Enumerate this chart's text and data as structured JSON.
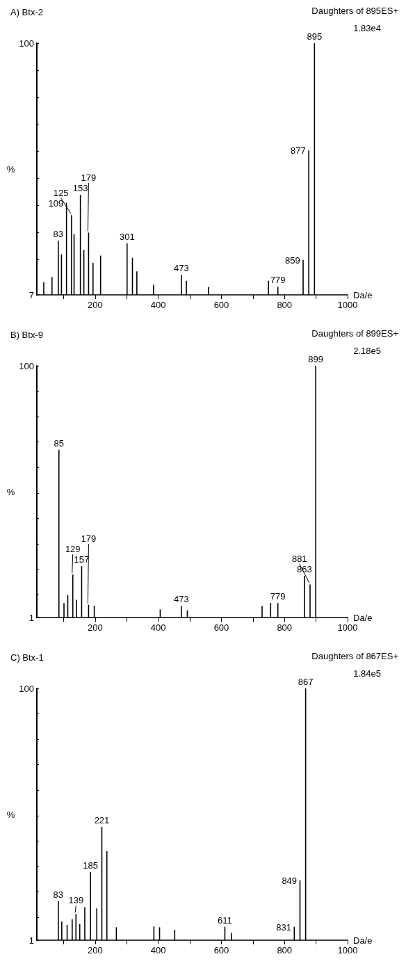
{
  "chart_data": [
    {
      "type": "bar",
      "title": "A) Btx-2",
      "subtitle": "Daughters of 895ES+",
      "xlabel": "Da/e",
      "ylabel": "%",
      "x": [
        37,
        63,
        83,
        93,
        109,
        125,
        133,
        153,
        164,
        179,
        193,
        217,
        301,
        318,
        332,
        385,
        473,
        489,
        559,
        749,
        779,
        859,
        877,
        895
      ],
      "values": [
        11.7,
        13.6,
        27,
        22,
        41,
        36.5,
        29.4,
        44,
        23.6,
        30,
        18.8,
        21.5,
        26,
        20.7,
        15.7,
        10.7,
        14.4,
        12.2,
        9.9,
        12.2,
        10,
        19.9,
        60.4,
        100
      ],
      "color": "#000000",
      "xlim": [
        15,
        1000
      ],
      "ylim": [
        7,
        100
      ],
      "xticks": [
        {
          "value": 100,
          "label": null
        },
        200,
        {
          "value": 300,
          "label": null
        },
        400,
        {
          "value": 500,
          "label": null
        },
        600,
        {
          "value": 700,
          "label": null
        },
        800,
        {
          "value": 900,
          "label": null
        },
        1000
      ],
      "yticks": [
        7,
        {
          "value": 20,
          "label": null
        },
        {
          "value": 30,
          "label": null
        },
        {
          "value": 40,
          "label": null
        },
        {
          "value": 50,
          "label": null
        },
        {
          "value": 60,
          "label": null
        },
        {
          "value": 70,
          "label": null
        },
        {
          "value": 80,
          "label": null
        },
        {
          "value": 90,
          "label": null
        },
        100
      ],
      "grid": false,
      "annotations": [
        {
          "text": "83",
          "x": 83,
          "y": 27
        },
        {
          "text": "109",
          "x": 109,
          "y": 41
        },
        {
          "text": "153",
          "x": 153,
          "y": 44
        },
        {
          "text": "125",
          "x": 125,
          "y": 36.5
        },
        {
          "text": "179",
          "x": 179,
          "y": 30
        },
        {
          "text": "301",
          "x": 301,
          "y": 26
        },
        {
          "text": "473",
          "x": 473,
          "y": 14.4
        },
        {
          "text": "779",
          "x": 779,
          "y": 10
        },
        {
          "text": "859",
          "x": 859,
          "y": 19.9
        },
        {
          "text": "877",
          "x": 877,
          "y": 60.4
        },
        {
          "text": "895",
          "x": 895,
          "y": 100
        },
        "1.83e4"
      ]
    },
    {
      "type": "bar",
      "title": "B) Btx-9",
      "subtitle": "Daughters of 899ES+",
      "xlabel": "Da/e",
      "ylabel": "%",
      "x": [
        85,
        101,
        113,
        129,
        141,
        157,
        179,
        197,
        406,
        473,
        492,
        729,
        756,
        779,
        863,
        881,
        899
      ],
      "values": [
        67,
        6.7,
        9.9,
        17.9,
        8,
        21.2,
        6,
        5.6,
        4.2,
        5.6,
        3.8,
        5.6,
        6.7,
        6.7,
        17.4,
        14,
        100
      ],
      "color": "#000000",
      "xlim": [
        15,
        1000
      ],
      "ylim": [
        1,
        100
      ],
      "xticks": [
        {
          "value": 100,
          "label": null
        },
        200,
        {
          "value": 300,
          "label": null
        },
        400,
        {
          "value": 500,
          "label": null
        },
        600,
        {
          "value": 700,
          "label": null
        },
        800,
        {
          "value": 900,
          "label": null
        },
        1000
      ],
      "yticks": [
        1,
        {
          "value": 10,
          "label": null
        },
        {
          "value": 20,
          "label": null
        },
        {
          "value": 30,
          "label": null
        },
        {
          "value": 40,
          "label": null
        },
        {
          "value": 50,
          "label": null
        },
        {
          "value": 60,
          "label": null
        },
        {
          "value": 70,
          "label": null
        },
        {
          "value": 80,
          "label": null
        },
        {
          "value": 90,
          "label": null
        },
        100
      ],
      "grid": false,
      "annotations": [
        {
          "text": "85",
          "x": 85,
          "y": 67
        },
        {
          "text": "129",
          "x": 129,
          "y": 17.9
        },
        {
          "text": "157",
          "x": 157,
          "y": 21.2
        },
        {
          "text": "179",
          "x": 179,
          "y": 6
        },
        {
          "text": "473",
          "x": 473,
          "y": 5.6
        },
        {
          "text": "779",
          "x": 779,
          "y": 6.7
        },
        {
          "text": "863",
          "x": 863,
          "y": 17.4
        },
        {
          "text": "881",
          "x": 881,
          "y": 14
        },
        {
          "text": "899",
          "x": 899,
          "y": 100
        },
        "2.18e5"
      ]
    },
    {
      "type": "bar",
      "title": "C) Btx-1",
      "subtitle": "Daughters of 867ES+",
      "xlabel": "Da/e",
      "ylabel": "%",
      "x": [
        83,
        94,
        111,
        127,
        139,
        151,
        167,
        185,
        205,
        221,
        237,
        267,
        386,
        404,
        452,
        611,
        632,
        831,
        849,
        867
      ],
      "values": [
        16.3,
        8.3,
        7,
        9.2,
        11.3,
        7.3,
        14,
        27.8,
        13.5,
        45.6,
        36,
        6.1,
        6.4,
        6.1,
        5.1,
        6.3,
        3.9,
        6.3,
        24.5,
        100
      ],
      "color": "#000000",
      "xlim": [
        15,
        1000
      ],
      "ylim": [
        1,
        100
      ],
      "xticks": [
        {
          "value": 100,
          "label": null
        },
        200,
        {
          "value": 300,
          "label": null
        },
        400,
        {
          "value": 500,
          "label": null
        },
        600,
        {
          "value": 700,
          "label": null
        },
        800,
        {
          "value": 900,
          "label": null
        },
        1000
      ],
      "yticks": [
        1,
        {
          "value": 10,
          "label": null
        },
        {
          "value": 20,
          "label": null
        },
        {
          "value": 30,
          "label": null
        },
        {
          "value": 40,
          "label": null
        },
        {
          "value": 50,
          "label": null
        },
        {
          "value": 60,
          "label": null
        },
        {
          "value": 70,
          "label": null
        },
        {
          "value": 80,
          "label": null
        },
        {
          "value": 90,
          "label": null
        },
        100
      ],
      "grid": false,
      "annotations": [
        {
          "text": "83",
          "x": 83,
          "y": 16.3
        },
        {
          "text": "139",
          "x": 139,
          "y": 11.3
        },
        {
          "text": "185",
          "x": 185,
          "y": 27.8
        },
        {
          "text": "221",
          "x": 221,
          "y": 45.6
        },
        {
          "text": "611",
          "x": 611,
          "y": 6.3
        },
        {
          "text": "831",
          "x": 831,
          "y": 6.3
        },
        {
          "text": "849",
          "x": 849,
          "y": 24.5
        },
        {
          "text": "867",
          "x": 867,
          "y": 100
        },
        "1.84e5"
      ]
    }
  ]
}
